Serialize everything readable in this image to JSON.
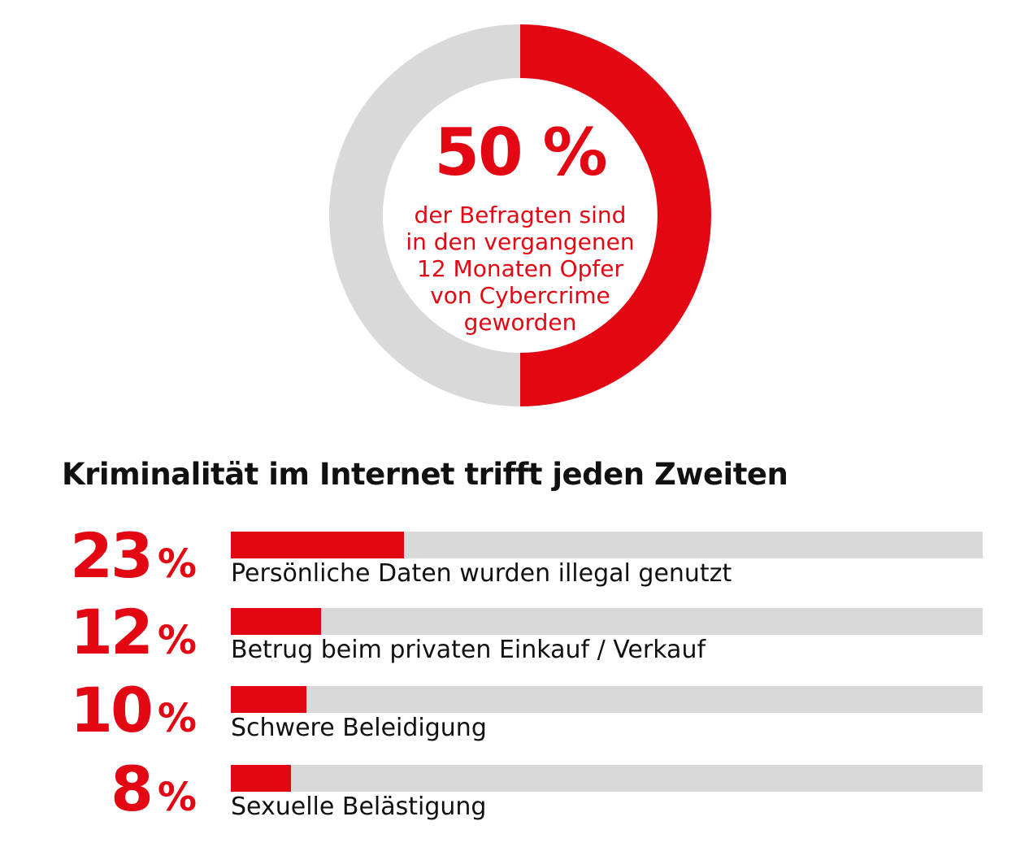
{
  "colors": {
    "accent": "#e30613",
    "track": "#d9d9d9",
    "text": "#111111"
  },
  "chart_data": [
    {
      "type": "pie",
      "variant": "donut",
      "values": [
        50,
        50
      ],
      "value_label": "50 %",
      "caption": "der Befragten sind\nin den vergangenen\n12 Monaten Opfer\nvon Cybercrime\ngeworden"
    },
    {
      "type": "bar",
      "orientation": "horizontal",
      "title": "Kriminalität im Internet trifft jeden Zweiten",
      "xlim": [
        0,
        100
      ],
      "categories": [
        "Persönliche Daten wurden illegal genutzt",
        "Betrug beim privaten Einkauf / Verkauf",
        "Schwere Beleidigung",
        "Sexuelle Belästigung"
      ],
      "values": [
        23,
        12,
        10,
        8
      ],
      "value_labels": [
        "23",
        "12",
        "10",
        "8"
      ],
      "unit": "%"
    }
  ]
}
